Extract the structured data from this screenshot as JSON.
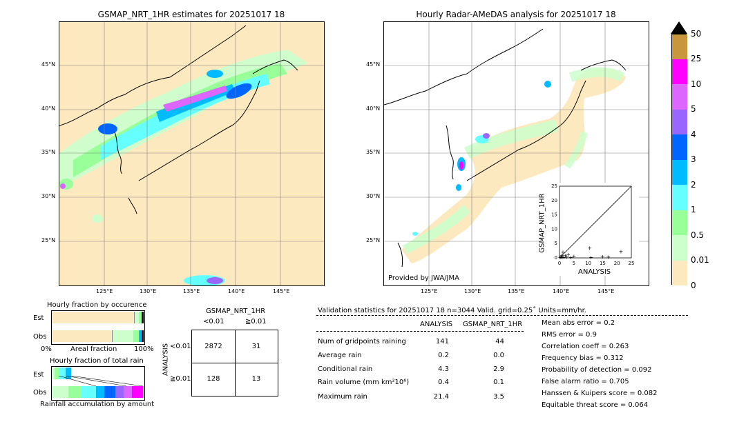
{
  "left_map": {
    "title": "GSMAP_NRT_1HR estimates for 20251017 18",
    "lat_labels": [
      "45°N",
      "40°N",
      "35°N",
      "30°N",
      "25°N"
    ],
    "lon_labels": [
      "125°E",
      "130°E",
      "135°E",
      "140°E",
      "145°E"
    ]
  },
  "right_map": {
    "title": "Hourly Radar-AMeDAS analysis for 20251017 18",
    "lat_labels": [
      "45°N",
      "40°N",
      "35°N",
      "30°N",
      "25°N"
    ],
    "lon_labels": [
      "125°E",
      "130°E",
      "135°E",
      "140°E",
      "145°E"
    ],
    "credit": "Provided by JWA/JMA"
  },
  "colorbar": {
    "labels": [
      "50",
      "25",
      "10",
      "5",
      "4",
      "3",
      "2",
      "1",
      "0.5",
      "0.01",
      "0"
    ],
    "colors": [
      "#c8963c",
      "#ff00ff",
      "#dd66ff",
      "#9966ff",
      "#0066ff",
      "#00bbff",
      "#66ffff",
      "#99ff99",
      "#ccffcc",
      "#fde9bf"
    ]
  },
  "scatter": {
    "xlabel": "ANALYSIS",
    "ylabel": "GSMAP_NRT_1HR",
    "ticks": [
      "0",
      "5",
      "10",
      "15",
      "20",
      "25"
    ]
  },
  "fraction_occurrence": {
    "title": "Hourly fraction by occurence",
    "row_labels": [
      "Est",
      "Obs"
    ],
    "axis_left": "0%",
    "axis_mid": "Areal fraction",
    "axis_right": "100%"
  },
  "fraction_rain": {
    "title": "Hourly fraction of total rain",
    "row_labels": [
      "Est",
      "Obs"
    ],
    "axis_label": "Rainfall accumulation by amount"
  },
  "contingency": {
    "title": "GSMAP_NRT_1HR",
    "col_headers": [
      "<0.01",
      "≧0.01"
    ],
    "row_title": "ANALYSIS",
    "row_headers": [
      "<0.01",
      "≧0.01"
    ],
    "cells": [
      "2872",
      "31",
      "128",
      "13"
    ]
  },
  "validation": {
    "header": "Validation statistics for 20251017 18  n=3044 Valid. grid=0.25˚ Units=mm/hr.",
    "col_analysis": "ANALYSIS",
    "col_gsmap": "GSMAP_NRT_1HR",
    "rows": [
      {
        "label": "Num of gridpoints raining",
        "analysis": "141",
        "gsmap": "44"
      },
      {
        "label": "Average rain",
        "analysis": "0.2",
        "gsmap": "0.0"
      },
      {
        "label": "Conditional rain",
        "analysis": "4.3",
        "gsmap": "2.9"
      },
      {
        "label": "Rain volume (mm km²10⁶)",
        "analysis": "0.4",
        "gsmap": "0.1"
      },
      {
        "label": "Maximum rain",
        "analysis": "21.4",
        "gsmap": "3.5"
      }
    ],
    "scores": [
      "Mean abs error =    0.2",
      "RMS error =    0.9",
      "Correlation coeff =  0.263",
      "Frequency bias =  0.312",
      "Probability of detection =  0.092",
      "False alarm ratio =  0.705",
      "Hanssen & Kuipers score =  0.082",
      "Equitable threat score =  0.064"
    ]
  },
  "chart_data": {
    "type": "scatter",
    "title": "",
    "xlabel": "ANALYSIS",
    "ylabel": "GSMAP_NRT_1HR",
    "xlim": [
      0,
      25
    ],
    "ylim": [
      0,
      25
    ],
    "points": [
      [
        0.2,
        0.3
      ],
      [
        0.5,
        0.2
      ],
      [
        0.8,
        1.0
      ],
      [
        1.0,
        0.5
      ],
      [
        1.2,
        2.0
      ],
      [
        1.5,
        0.3
      ],
      [
        2.0,
        0.8
      ],
      [
        2.5,
        0.4
      ],
      [
        3.0,
        1.2
      ],
      [
        4.0,
        0.2
      ],
      [
        5.0,
        0.6
      ],
      [
        10.5,
        3.5
      ],
      [
        11.0,
        0.3
      ],
      [
        15.0,
        0.5
      ],
      [
        17.0,
        0.4
      ],
      [
        21.4,
        2.3
      ]
    ]
  }
}
